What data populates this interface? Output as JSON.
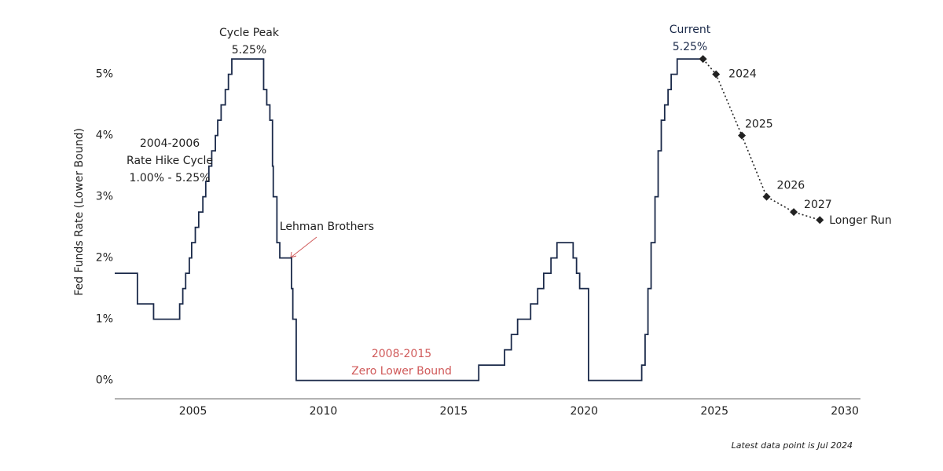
{
  "chart_data": {
    "type": "line",
    "y_label": "Fed Funds Rate (Lower Bound)",
    "xlim": [
      2002,
      2030.6
    ],
    "ylim": [
      -0.3,
      5.7
    ],
    "xticks": [
      2005,
      2010,
      2015,
      2020,
      2025,
      2030
    ],
    "yticks": [
      {
        "value": 0,
        "label": "0%"
      },
      {
        "value": 1,
        "label": "1%"
      },
      {
        "value": 2,
        "label": "2%"
      },
      {
        "value": 3,
        "label": "3%"
      },
      {
        "value": 4,
        "label": "4%"
      },
      {
        "value": 5,
        "label": "5%"
      }
    ],
    "grid": false,
    "series": [
      {
        "color": "#1b2a4a",
        "style": "step",
        "x": [
          2002.0,
          2002.87,
          2003.49,
          2004.49,
          2004.61,
          2004.72,
          2004.86,
          2004.95,
          2005.09,
          2005.22,
          2005.38,
          2005.49,
          2005.61,
          2005.72,
          2005.86,
          2005.95,
          2006.08,
          2006.24,
          2006.36,
          2006.49,
          2007.71,
          2007.83,
          2007.95,
          2008.05,
          2008.08,
          2008.22,
          2008.33,
          2008.78,
          2008.83,
          2008.96,
          2015.96,
          2016.95,
          2017.21,
          2017.45,
          2017.95,
          2018.22,
          2018.45,
          2018.73,
          2018.96,
          2019.58,
          2019.71,
          2019.83,
          2020.17,
          2022.21,
          2022.34,
          2022.45,
          2022.57,
          2022.72,
          2022.84,
          2022.96,
          2023.09,
          2023.22,
          2023.34,
          2023.57,
          2024.56
        ],
        "values": [
          1.75,
          1.25,
          1.0,
          1.25,
          1.5,
          1.75,
          2.0,
          2.25,
          2.5,
          2.75,
          3.0,
          3.25,
          3.5,
          3.75,
          4.0,
          4.25,
          4.5,
          4.75,
          5.0,
          5.25,
          4.75,
          4.5,
          4.25,
          3.5,
          3.0,
          2.25,
          2.0,
          1.5,
          1.0,
          0.0,
          0.25,
          0.5,
          0.75,
          1.0,
          1.25,
          1.5,
          1.75,
          2.0,
          2.25,
          2.0,
          1.75,
          1.5,
          0.0,
          0.25,
          0.75,
          1.5,
          2.25,
          3.0,
          3.75,
          4.25,
          4.5,
          4.75,
          5.0,
          5.25,
          5.25
        ]
      },
      {
        "color": "#222222",
        "style": "dotted",
        "x": [
          2024.56,
          2025.06,
          2026.05,
          2027.0,
          2028.04,
          2029.04
        ],
        "values": [
          5.25,
          5.0,
          4.0,
          3.0,
          2.75,
          2.62
        ],
        "point_labels": [
          null,
          "2024",
          "2025",
          "2026",
          "2027",
          "Longer Run"
        ]
      }
    ],
    "annotations": [
      {
        "lines": [
          "Cycle Peak",
          "5.25%"
        ],
        "color": "#222222"
      },
      {
        "lines": [
          "2004-2006",
          "Rate Hike Cycle",
          "1.00% - 5.25%"
        ],
        "color": "#222222"
      },
      {
        "lines": [
          "Lehman Brothers"
        ],
        "color": "#222222"
      },
      {
        "lines": [
          "2008-2015",
          "Zero Lower Bound"
        ],
        "color": "#d05a5a"
      },
      {
        "lines": [
          "Current",
          "5.25%"
        ],
        "color": "#1b2a4a"
      }
    ],
    "note": "Latest data point is Jul 2024"
  }
}
